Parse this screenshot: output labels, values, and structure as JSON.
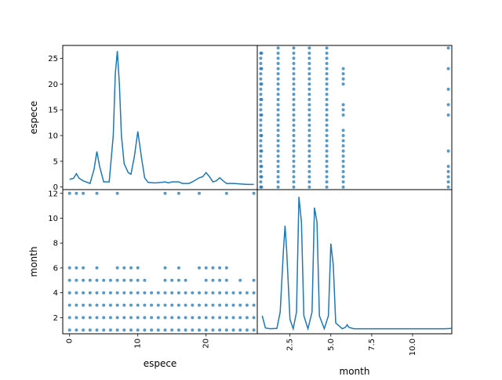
{
  "chart_data": {
    "type": "scatter-matrix",
    "variables": [
      "espece",
      "month"
    ],
    "colors": {
      "series": "#1f77b4",
      "frame": "#000000",
      "background": "#ffffff"
    },
    "grid": false,
    "panels": [
      {
        "id": "espece-kde",
        "row": "espece",
        "col": "espece",
        "type": "line",
        "xlim": [
          -1,
          27.5
        ],
        "ylim": [
          -0.5,
          27.5
        ],
        "y_ticks": [
          0,
          5,
          10,
          15,
          20,
          25
        ],
        "y_tick_labels": [
          "0",
          "5",
          "10",
          "15",
          "20",
          "25"
        ],
        "ylabel": "espece",
        "x": [
          0,
          0.6,
          1.0,
          1.4,
          2.0,
          3.0,
          3.6,
          4.0,
          4.4,
          5.0,
          5.8,
          6.4,
          6.7,
          7.0,
          7.3,
          7.6,
          8.0,
          8.6,
          9.0,
          9.5,
          10.0,
          10.5,
          11.0,
          11.5,
          12.5,
          13.5,
          14.0,
          14.5,
          15.0,
          16.0,
          16.5,
          17.5,
          18.0,
          19.0,
          19.5,
          20.0,
          20.5,
          21.0,
          21.5,
          22.0,
          22.5,
          23.0,
          24.0,
          25.0,
          26.0,
          27.0
        ],
        "y": [
          1.5,
          1.7,
          2.6,
          1.7,
          1.2,
          0.7,
          3.5,
          6.9,
          4.0,
          1.0,
          1.0,
          10.0,
          22.0,
          26.4,
          20.0,
          10.0,
          4.5,
          2.8,
          2.5,
          6.0,
          10.8,
          6.0,
          1.8,
          0.9,
          0.8,
          0.9,
          1.0,
          0.8,
          1.0,
          1.0,
          0.7,
          0.7,
          1.0,
          1.8,
          2.0,
          2.8,
          2.0,
          1.0,
          1.2,
          1.8,
          1.2,
          0.7,
          0.7,
          0.6,
          0.5,
          0.5
        ]
      },
      {
        "id": "espece-vs-month",
        "row": "espece",
        "col": "month",
        "type": "scatter",
        "xlim": [
          1,
          12.2
        ],
        "ylim": [
          -0.5,
          27.5
        ],
        "columns": [
          {
            "x": 1.2,
            "y": [
              0,
              1,
              2,
              3,
              4,
              5,
              6,
              7,
              8,
              9,
              10,
              11,
              12,
              13,
              14,
              15,
              16,
              17,
              18,
              19,
              20,
              21,
              22,
              23,
              24,
              25,
              26
            ]
          },
          {
            "x": 1.25,
            "y": [
              0,
              2,
              4,
              7,
              10,
              14,
              17,
              20,
              23,
              26
            ]
          },
          {
            "x": 2.2,
            "y": [
              0,
              1,
              2,
              3,
              4,
              5,
              6,
              7,
              8,
              9,
              10,
              11,
              12,
              13,
              14,
              15,
              16,
              17,
              18,
              19,
              20,
              21,
              22,
              23,
              24,
              25,
              26,
              27
            ]
          },
          {
            "x": 3.1,
            "y": [
              0,
              1,
              2,
              3,
              4,
              5,
              6,
              7,
              8,
              9,
              10,
              11,
              12,
              13,
              14,
              15,
              16,
              17,
              18,
              19,
              20,
              21,
              22,
              23,
              24,
              25,
              26,
              27
            ]
          },
          {
            "x": 4.0,
            "y": [
              0,
              1,
              2,
              3,
              4,
              5,
              6,
              7,
              8,
              9,
              10,
              11,
              12,
              13,
              14,
              15,
              16,
              17,
              18,
              19,
              20,
              21,
              22,
              23,
              24,
              25,
              26,
              27
            ]
          },
          {
            "x": 5.0,
            "y": [
              0,
              1,
              2,
              3,
              4,
              5,
              6,
              7,
              8,
              9,
              10,
              11,
              12,
              13,
              14,
              15,
              16,
              17,
              18,
              19,
              20,
              21,
              22,
              23,
              24,
              25,
              26,
              27
            ]
          },
          {
            "x": 5.95,
            "y": [
              0,
              1,
              2,
              3,
              4,
              5,
              6,
              7,
              8,
              9,
              10,
              11,
              14,
              15,
              16,
              20,
              21,
              22,
              23
            ]
          },
          {
            "x": 12.0,
            "y": [
              0,
              1,
              2,
              3,
              4,
              7,
              14,
              16,
              19,
              23,
              27
            ]
          }
        ]
      },
      {
        "id": "month-vs-espece",
        "row": "month",
        "col": "espece",
        "type": "scatter",
        "xlim": [
          -1,
          27.5
        ],
        "ylim": [
          0.7,
          12.3
        ],
        "y_ticks": [
          2,
          4,
          6,
          8,
          10,
          12
        ],
        "y_tick_labels": [
          "2",
          "4",
          "6",
          "8",
          "10",
          "12"
        ],
        "x_ticks": [
          0,
          10,
          20
        ],
        "x_tick_labels": [
          "0",
          "10",
          "20"
        ],
        "xlabel": "espece",
        "ylabel": "month",
        "rows": [
          {
            "y": 1,
            "x": [
              0,
              1,
              2,
              3,
              4,
              5,
              6,
              7,
              8,
              9,
              10,
              11,
              12,
              13,
              14,
              15,
              16,
              17,
              18,
              19,
              20,
              21,
              22,
              23,
              24,
              25,
              26,
              27
            ]
          },
          {
            "y": 2,
            "x": [
              0,
              1,
              2,
              3,
              4,
              5,
              6,
              7,
              8,
              9,
              10,
              11,
              12,
              13,
              14,
              15,
              16,
              17,
              18,
              19,
              20,
              21,
              22,
              23,
              24,
              25,
              26,
              27
            ]
          },
          {
            "y": 3,
            "x": [
              0,
              1,
              2,
              3,
              4,
              5,
              6,
              7,
              8,
              9,
              10,
              11,
              12,
              13,
              14,
              15,
              16,
              17,
              18,
              19,
              20,
              21,
              22,
              23,
              24,
              25,
              26,
              27
            ]
          },
          {
            "y": 4,
            "x": [
              0,
              1,
              2,
              3,
              4,
              5,
              6,
              7,
              8,
              9,
              10,
              11,
              12,
              13,
              14,
              15,
              16,
              17,
              18,
              19,
              20,
              21,
              22,
              23,
              24,
              25,
              26,
              27
            ]
          },
          {
            "y": 5,
            "x": [
              0,
              1,
              2,
              3,
              4,
              5,
              6,
              7,
              8,
              9,
              10,
              11,
              14,
              15,
              16,
              17,
              20,
              21,
              22,
              23,
              25,
              27
            ]
          },
          {
            "y": 6,
            "x": [
              0,
              1,
              2,
              4,
              7,
              8,
              9,
              10,
              14,
              16,
              19,
              20,
              21,
              22,
              23
            ]
          },
          {
            "y": 12,
            "x": [
              0,
              1,
              2,
              4,
              7,
              14,
              16,
              19,
              23,
              27
            ]
          }
        ]
      },
      {
        "id": "month-kde",
        "row": "month",
        "col": "month",
        "type": "line",
        "xlim": [
          0.5,
          12.4
        ],
        "ylim": [
          -1,
          39
        ],
        "x_ticks": [
          2.5,
          5.0,
          7.5,
          10.0
        ],
        "x_tick_labels": [
          "2.5",
          "5.0",
          "7.5",
          "10.0"
        ],
        "xlabel": "month",
        "x": [
          0.8,
          1.0,
          1.3,
          1.7,
          1.9,
          2.1,
          2.2,
          2.3,
          2.5,
          2.7,
          2.9,
          3.05,
          3.2,
          3.35,
          3.6,
          3.85,
          4.0,
          4.15,
          4.3,
          4.6,
          4.85,
          5.0,
          5.15,
          5.3,
          5.7,
          5.9,
          6.0,
          6.1,
          6.4,
          7.0,
          8.0,
          9.0,
          10.0,
          11.0,
          12.0,
          12.4
        ],
        "y": [
          4,
          0.6,
          0.4,
          0.5,
          5,
          22,
          29,
          22,
          3,
          0.4,
          5,
          37,
          30,
          4,
          0.4,
          5,
          34,
          30,
          4,
          0.4,
          4,
          24,
          18,
          2,
          0.4,
          0.8,
          1.5,
          0.8,
          0.4,
          0.4,
          0.4,
          0.4,
          0.4,
          0.4,
          0.4,
          0.5
        ]
      }
    ]
  }
}
